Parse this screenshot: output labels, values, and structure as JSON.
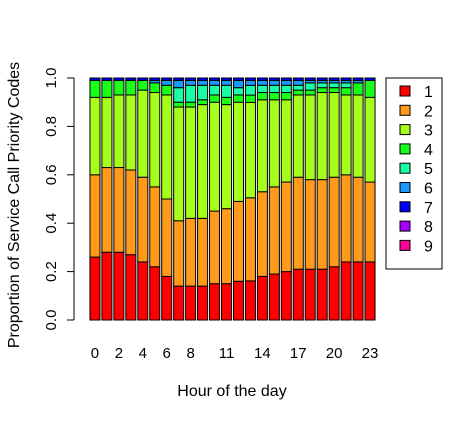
{
  "chart_data": {
    "type": "bar",
    "stacked": true,
    "xlabel": "Hour of the day",
    "ylabel": "Proportion of Service Call Priority Codes",
    "ylim": [
      0,
      1
    ],
    "y_ticks": [
      "0.0",
      "0.2",
      "0.4",
      "0.6",
      "0.8",
      "1.0"
    ],
    "y_tick_values": [
      0,
      0.2,
      0.4,
      0.6,
      0.8,
      1.0
    ],
    "categories": [
      "0",
      "1",
      "2",
      "3",
      "4",
      "5",
      "6",
      "7",
      "8",
      "9",
      "10",
      "11",
      "12",
      "13",
      "14",
      "15",
      "16",
      "17",
      "18",
      "19",
      "20",
      "21",
      "22",
      "23"
    ],
    "x_tick_labels": [
      "0",
      "2",
      "4",
      "6",
      "8",
      "11",
      "14",
      "17",
      "20",
      "23"
    ],
    "x_tick_categories": [
      "0",
      "2",
      "4",
      "6",
      "8",
      "11",
      "14",
      "17",
      "20",
      "23"
    ],
    "legend_position": "right",
    "series": [
      {
        "name": "1",
        "color": "#ff0000",
        "values": [
          0.26,
          0.28,
          0.28,
          0.27,
          0.24,
          0.22,
          0.18,
          0.14,
          0.14,
          0.14,
          0.15,
          0.15,
          0.16,
          0.16,
          0.18,
          0.19,
          0.2,
          0.21,
          0.21,
          0.21,
          0.22,
          0.24,
          0.24,
          0.24
        ]
      },
      {
        "name": "2",
        "color": "#ff9a1a",
        "values": [
          0.34,
          0.35,
          0.35,
          0.35,
          0.35,
          0.33,
          0.32,
          0.27,
          0.28,
          0.28,
          0.3,
          0.31,
          0.33,
          0.34,
          0.35,
          0.36,
          0.37,
          0.38,
          0.37,
          0.37,
          0.37,
          0.36,
          0.35,
          0.33
        ]
      },
      {
        "name": "3",
        "color": "#a6ff1a",
        "values": [
          0.32,
          0.29,
          0.3,
          0.31,
          0.36,
          0.39,
          0.43,
          0.47,
          0.46,
          0.47,
          0.45,
          0.43,
          0.41,
          0.39,
          0.38,
          0.36,
          0.34,
          0.34,
          0.35,
          0.36,
          0.35,
          0.33,
          0.34,
          0.35
        ]
      },
      {
        "name": "4",
        "color": "#1aff1a",
        "values": [
          0.07,
          0.07,
          0.06,
          0.06,
          0.04,
          0.04,
          0.04,
          0.02,
          0.02,
          0.02,
          0.03,
          0.03,
          0.03,
          0.03,
          0.03,
          0.03,
          0.03,
          0.02,
          0.02,
          0.02,
          0.02,
          0.03,
          0.05,
          0.07
        ]
      },
      {
        "name": "5",
        "color": "#1affa6",
        "values": [
          0.0,
          0.0,
          0.0,
          0.0,
          0.0,
          0.0,
          0.0,
          0.06,
          0.07,
          0.06,
          0.04,
          0.05,
          0.03,
          0.04,
          0.03,
          0.03,
          0.03,
          0.02,
          0.03,
          0.02,
          0.02,
          0.02,
          0.0,
          0.0
        ]
      },
      {
        "name": "6",
        "color": "#1a9aff",
        "values": [
          0.0,
          0.0,
          0.0,
          0.0,
          0.0,
          0.01,
          0.02,
          0.03,
          0.02,
          0.02,
          0.02,
          0.02,
          0.03,
          0.02,
          0.02,
          0.02,
          0.02,
          0.02,
          0.01,
          0.01,
          0.01,
          0.01,
          0.01,
          0.0
        ]
      },
      {
        "name": "7",
        "color": "#0000ff",
        "values": [
          0.01,
          0.01,
          0.01,
          0.01,
          0.01,
          0.01,
          0.01,
          0.01,
          0.01,
          0.01,
          0.01,
          0.01,
          0.01,
          0.01,
          0.01,
          0.01,
          0.01,
          0.01,
          0.01,
          0.01,
          0.01,
          0.01,
          0.01,
          0.01
        ]
      },
      {
        "name": "8",
        "color": "#a600ff",
        "values": [
          0,
          0,
          0,
          0,
          0,
          0,
          0,
          0,
          0,
          0,
          0,
          0,
          0,
          0,
          0,
          0,
          0,
          0,
          0,
          0,
          0,
          0,
          0,
          0
        ]
      },
      {
        "name": "9",
        "color": "#ff0099",
        "values": [
          0,
          0,
          0,
          0,
          0,
          0,
          0,
          0,
          0,
          0,
          0,
          0,
          0,
          0,
          0,
          0,
          0,
          0,
          0,
          0,
          0,
          0,
          0,
          0
        ]
      }
    ]
  }
}
